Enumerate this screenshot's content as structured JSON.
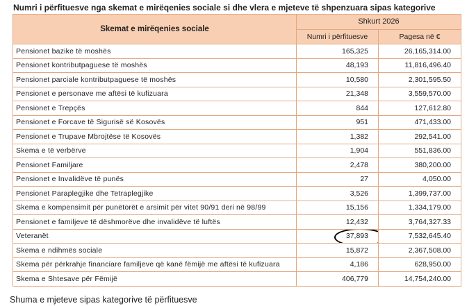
{
  "title": "Numri i përfituesve nga skemat e mirëqenies sociale si dhe vlera e mjeteve të shpenzuara sipas kategorive",
  "table": {
    "header_main": "Skemat e mirëqenies sociale",
    "header_year": "Shkurt 2026",
    "header_col2": "Numri i përfituesve",
    "header_col3": "Pagesa në €",
    "rows": [
      {
        "label": "Pensionet bazike të moshës",
        "count": "165,325",
        "payment": "26,165,314.00"
      },
      {
        "label": "Pensionet kontributpaguese të moshës",
        "count": "48,193",
        "payment": "11,816,496.40"
      },
      {
        "label": "Pensionet parciale kontributpaguese të moshës",
        "count": "10,580",
        "payment": "2,301,595.50"
      },
      {
        "label": "Pensionet e personave me aftësi të kufizuara",
        "count": "21,348",
        "payment": "3,559,570.00"
      },
      {
        "label": "Pensionet e Trepçës",
        "count": "844",
        "payment": "127,612.80"
      },
      {
        "label": "Pensionet e Forcave të Sigurisë së Kosovës",
        "count": "951",
        "payment": "471,433.00"
      },
      {
        "label": "Pensionet e Trupave Mbrojtëse të Kosovës",
        "count": "1,382",
        "payment": "292,541.00"
      },
      {
        "label": "Skema e të verbërve",
        "count": "1,904",
        "payment": "551,836.00"
      },
      {
        "label": "Pensionet Familjare",
        "count": "2,478",
        "payment": "380,200.00"
      },
      {
        "label": "Pensionet e Invalidëve të punës",
        "count": "27",
        "payment": "4,050.00"
      },
      {
        "label": "Pensionet Paraplegjike dhe Tetraplegjike",
        "count": "3,526",
        "payment": "1,399,737.00"
      },
      {
        "label": "Skema e kompensimit për punëtorët e arsimit për vitet 90/91 deri në 98/99",
        "count": "15,156",
        "payment": "1,334,179.00"
      },
      {
        "label": "Pensionet e familjeve të dëshmorëve dhe invalidëve të luftës",
        "count": "12,432",
        "payment": "3,764,327.33"
      },
      {
        "label": "Veteranët",
        "count": "37,893",
        "payment": "7,532,645.40"
      },
      {
        "label": "Skema e ndihmës sociale",
        "count": "15,872",
        "payment": "2,367,508.00"
      },
      {
        "label": "Skema për përkrahje financiare familjeve që kanë fëmijë me aftësi të kufizuara",
        "count": "4,186",
        "payment": "628,950.00"
      },
      {
        "label": "Skema e Shtesave për Fëmijë",
        "count": "406,779",
        "payment": "14,754,240.00"
      }
    ]
  },
  "footer": "Shuma e mjeteve sipas kategorive të përfituesve",
  "colors": {
    "header_bg": "#f8cfb3",
    "border": "#e3a882",
    "annotation": "#000000"
  }
}
